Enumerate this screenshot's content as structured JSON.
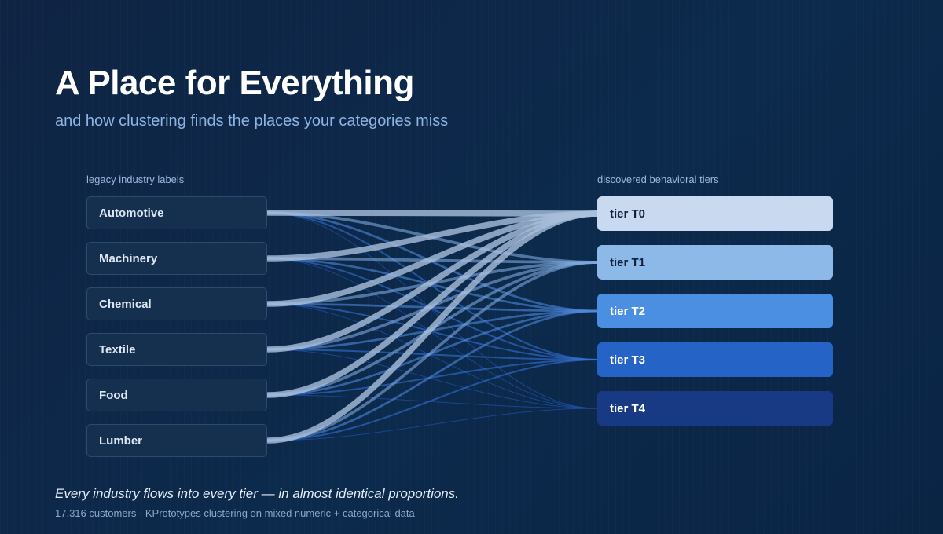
{
  "header": {
    "title": "A Place for Everything",
    "subtitle": "and how clustering finds the places your categories miss"
  },
  "columns": {
    "left_label": "legacy industry labels",
    "right_label": "discovered behavioral tiers"
  },
  "sources": [
    {
      "label": "Automotive"
    },
    {
      "label": "Machinery"
    },
    {
      "label": "Chemical"
    },
    {
      "label": "Textile"
    },
    {
      "label": "Food"
    },
    {
      "label": "Lumber"
    }
  ],
  "tiers": [
    {
      "label": "tier T0",
      "color": "#c9d9f0",
      "text_color": "#10223d"
    },
    {
      "label": "tier T1",
      "color": "#8db9e9",
      "text_color": "#10223d"
    },
    {
      "label": "tier T2",
      "color": "#4b8fe2",
      "text_color": "#ffffff"
    },
    {
      "label": "tier T3",
      "color": "#2563c7",
      "text_color": "#ffffff"
    },
    {
      "label": "tier T4",
      "color": "#183a85",
      "text_color": "#ffffff"
    }
  ],
  "flow_share": [
    0.44,
    0.22,
    0.16,
    0.12,
    0.06
  ],
  "flow_colors": [
    "#a9bfdc",
    "#7fa8dc",
    "#4e89dc",
    "#3471d3",
    "#2458b8"
  ],
  "footer": {
    "note": "Every industry flows into every tier — in almost identical proportions.",
    "caption": "17,316 customers · KPrototypes clustering on mixed numeric + categorical data"
  }
}
